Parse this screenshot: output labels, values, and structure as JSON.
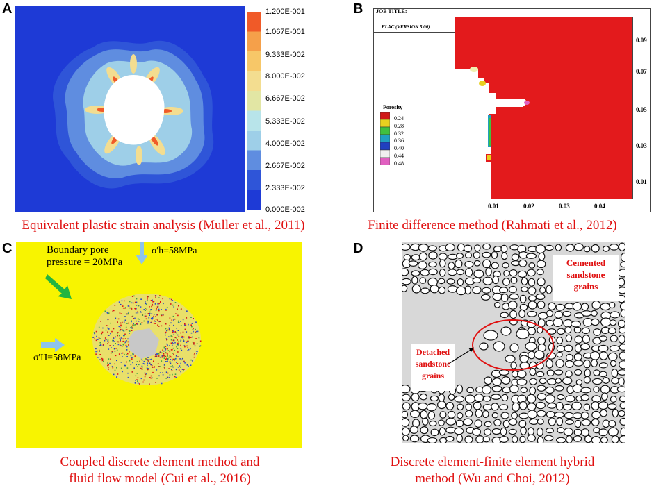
{
  "panels": {
    "A": {
      "label": "A",
      "caption": "Equivalent plastic strain analysis (Muller et al., 2011)",
      "colorbar": [
        {
          "value": "1.200E-001",
          "color": "#f05a28"
        },
        {
          "value": "1.067E-001",
          "color": "#f5a04a"
        },
        {
          "value": "9.333E-002",
          "color": "#f7c768"
        },
        {
          "value": "8.000E-002",
          "color": "#f3dd90"
        },
        {
          "value": "6.667E-002",
          "color": "#e2e6a4"
        },
        {
          "value": "5.333E-002",
          "color": "#b8e4ea"
        },
        {
          "value": "4.000E-002",
          "color": "#9ecfe8"
        },
        {
          "value": "2.667E-002",
          "color": "#5f8de0"
        },
        {
          "value": "2.333E-002",
          "color": "#2f55d8"
        },
        {
          "value": "0.000E-002",
          "color": "#1e3ad6"
        }
      ]
    },
    "B": {
      "label": "B",
      "caption": "Finite difference method (Rahmati et al., 2012)",
      "job_title": "JOB TITLE:",
      "software": "FLAC (VERSION 5.00)",
      "legend_title": "Porosity",
      "legend": [
        {
          "value": "0.24",
          "color": "#d01818"
        },
        {
          "value": "0.28",
          "color": "#e8d020"
        },
        {
          "value": "0.32",
          "color": "#40c040"
        },
        {
          "value": "0.36",
          "color": "#20a0c0"
        },
        {
          "value": "0.40",
          "color": "#2040c0"
        },
        {
          "value": "0.44",
          "color": "#f0f0f0"
        },
        {
          "value": "0.48",
          "color": "#e060c0"
        }
      ],
      "y_ticks": [
        "0.09",
        "0.07",
        "0.05",
        "0.03",
        "0.01"
      ],
      "x_ticks": [
        "0.01",
        "0.02",
        "0.03",
        "0.04"
      ]
    },
    "C": {
      "label": "C",
      "caption_line1": "Coupled discrete element method and",
      "caption_line2": "fluid flow model (Cui et al., 2016)",
      "boundary_line1": "Boundary pore",
      "boundary_line2": "pressure = 20MPa",
      "stress_top": "σ'h=58MPa",
      "stress_left": "σ'H=58MPa"
    },
    "D": {
      "label": "D",
      "caption_line1": "Discrete element-finite element hybrid",
      "caption_line2": "method  (Wu and Choi, 2012)",
      "cemented_line1": "Cemented",
      "cemented_line2": "sandstone",
      "cemented_line3": "grains",
      "detached_line1": "Detached",
      "detached_line2": "sandstone",
      "detached_line3": "grains"
    }
  }
}
